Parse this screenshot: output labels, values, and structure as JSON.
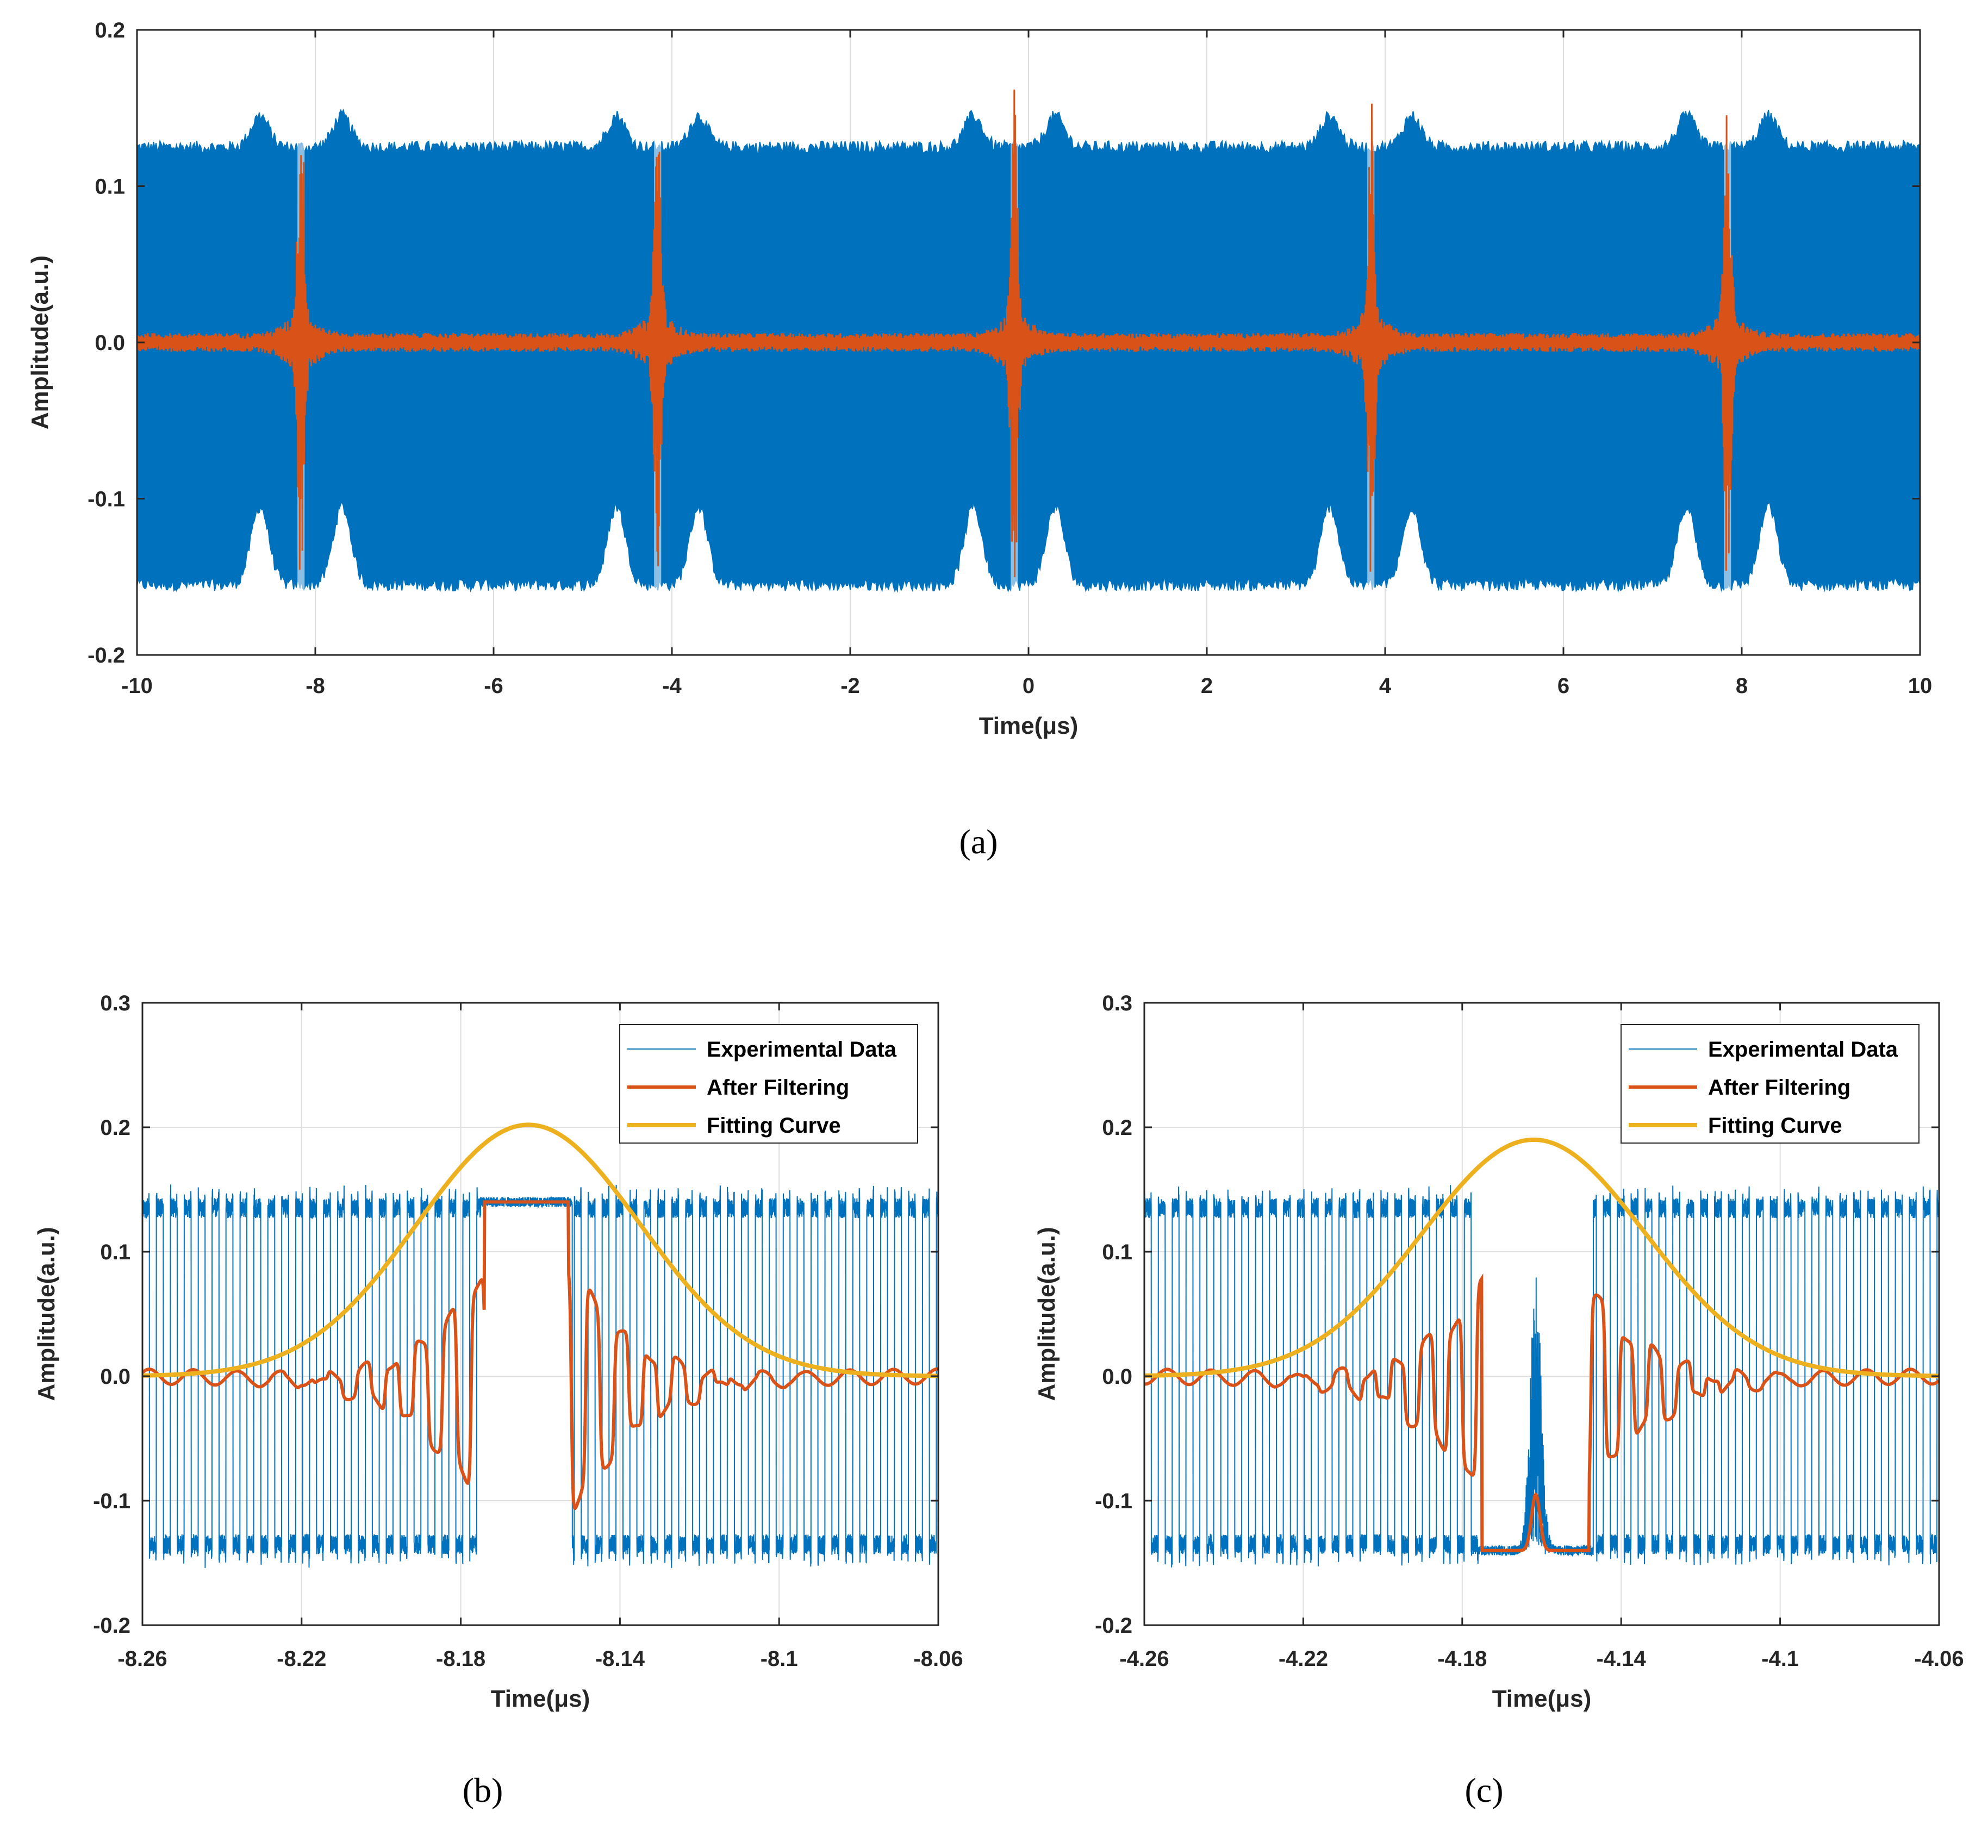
{
  "figure": {
    "colors": {
      "experimental": "#0072BD",
      "filtered": "#D95319",
      "fitting": "#EDB120",
      "grid": "#DFDFDF",
      "axis": "#262626"
    }
  },
  "chart_data": [
    {
      "type": "line",
      "panel_label": "(a)",
      "xlabel": "Time(μs)",
      "ylabel": "Amplitude(a.u.)",
      "xlim": [
        -10,
        10
      ],
      "ylim": [
        -0.2,
        0.2
      ],
      "xticks": [
        -10,
        -8,
        -6,
        -4,
        -2,
        0,
        2,
        4,
        6,
        8,
        10
      ],
      "xtick_labels": [
        "-10",
        "-8",
        "-6",
        "-4",
        "-2",
        "0",
        "2",
        "4",
        "6",
        "8",
        "10"
      ],
      "yticks": [
        -0.2,
        -0.1,
        0.0,
        0.1,
        0.2
      ],
      "ytick_labels": [
        "-0.2",
        "-0.1",
        "0.0",
        "0.1",
        "0.2"
      ],
      "grid": true,
      "pulse_centers": [
        -8.16,
        -4.16,
        -0.16,
        3.84,
        7.84
      ],
      "series": [
        {
          "envelope": {
            "base_upper": 0.125,
            "base_lower": -0.155,
            "bump_upper": 0.145,
            "bump_lower": -0.105,
            "bump_offset": 0.46,
            "bump_halfwidth": 0.2,
            "center_gap_halfwidth": 0.04
          }
        },
        {
          "peak_amplitude": 0.145,
          "noise_amplitude": 0.006
        }
      ]
    },
    {
      "type": "line",
      "panel_label": "(b)",
      "xlabel": "Time(μs)",
      "ylabel": "Amplitude(a.u.)",
      "xlim": [
        -8.26,
        -8.06
      ],
      "ylim": [
        -0.2,
        0.3
      ],
      "xticks": [
        -8.26,
        -8.22,
        -8.18,
        -8.14,
        -8.1,
        -8.06
      ],
      "xtick_labels": [
        "-8.26",
        "-8.22",
        "-8.18",
        "-8.14",
        "-8.1",
        "-8.06"
      ],
      "yticks": [
        -0.2,
        -0.1,
        0.0,
        0.1,
        0.2,
        0.3
      ],
      "ytick_labels": [
        "-0.2",
        "-0.1",
        "0.0",
        "0.1",
        "0.2",
        "0.3"
      ],
      "grid": true,
      "legend_position": "top-right",
      "series": [
        {
          "name": "Experimental Data",
          "high": 0.135,
          "low": -0.135,
          "period_us": 0.0035,
          "flat_segment": [
            -8.175,
            -8.152
          ],
          "flat_level": 0.14
        },
        {
          "name": "After Filtering",
          "center_us": -8.163,
          "plateau_level": 0.14
        },
        {
          "name": "Fitting Curve",
          "center_us": -8.163,
          "peak": 0.202,
          "sigma_us": 0.028
        }
      ]
    },
    {
      "type": "line",
      "panel_label": "(c)",
      "xlabel": "Time(μs)",
      "ylabel": "Amplitude(a.u.)",
      "xlim": [
        -4.26,
        -4.06
      ],
      "ylim": [
        -0.2,
        0.3
      ],
      "xticks": [
        -4.26,
        -4.22,
        -4.18,
        -4.14,
        -4.1,
        -4.06
      ],
      "xtick_labels": [
        "-4.26",
        "-4.22",
        "-4.18",
        "-4.14",
        "-4.1",
        "-4.06"
      ],
      "yticks": [
        -0.2,
        -0.1,
        0.0,
        0.1,
        0.2,
        0.3
      ],
      "ytick_labels": [
        "-0.2",
        "-0.1",
        "0.0",
        "0.1",
        "0.2",
        "0.3"
      ],
      "grid": true,
      "legend_position": "top-right",
      "series": [
        {
          "name": "Experimental Data",
          "high": 0.135,
          "low": -0.135,
          "period_us": 0.0035,
          "flat_segment": [
            -4.176,
            -4.147
          ],
          "flat_level": -0.14
        },
        {
          "name": "After Filtering",
          "center_us": -4.162,
          "plateau_level": -0.14
        },
        {
          "name": "Fitting Curve",
          "center_us": -4.162,
          "peak": 0.19,
          "sigma_us": 0.028
        }
      ]
    }
  ]
}
